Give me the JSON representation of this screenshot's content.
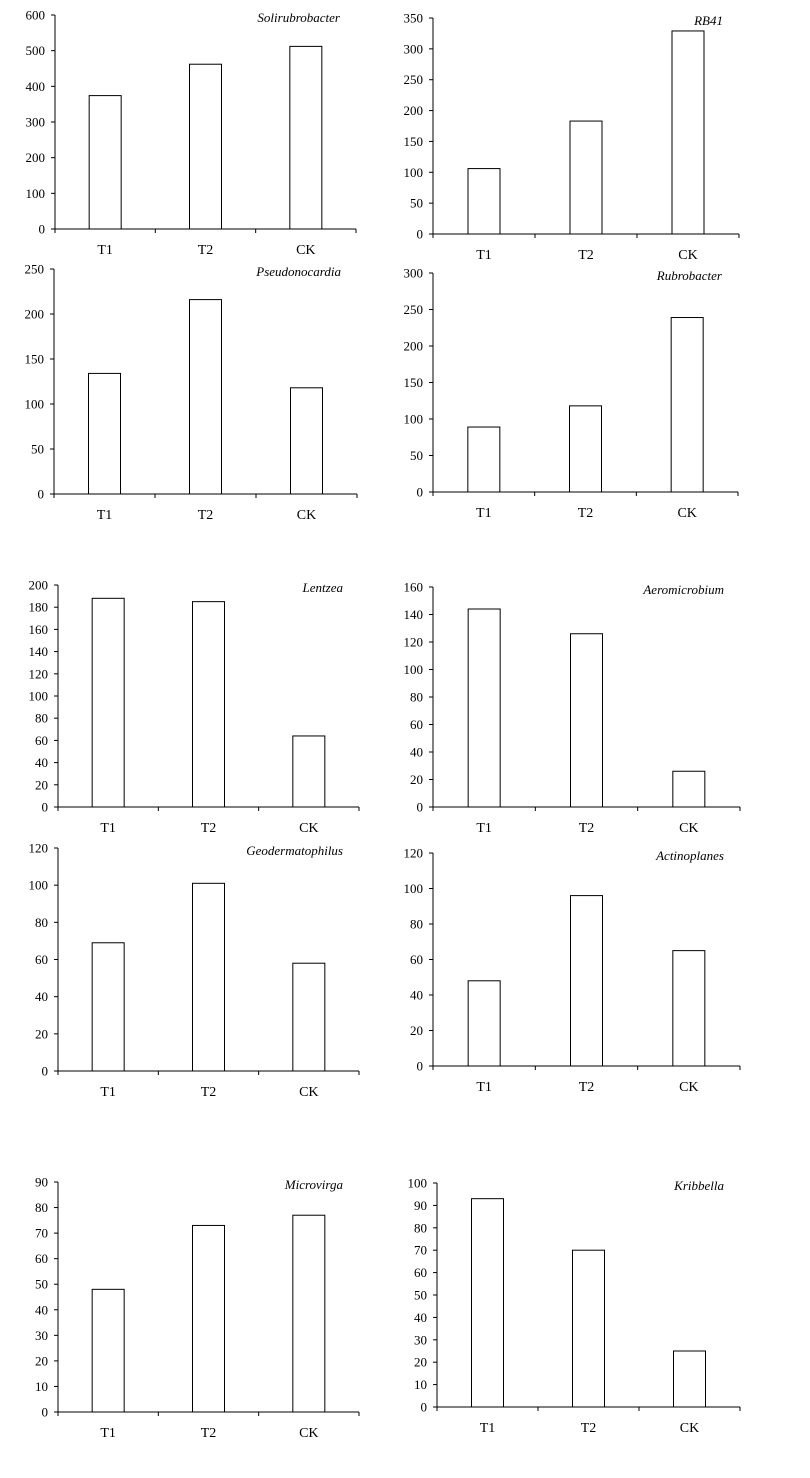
{
  "colors": {
    "bar_fill": "#ffffff",
    "bar_stroke": "#000000",
    "axis": "#000000",
    "text": "#000000"
  },
  "chart_data": [
    {
      "type": "bar",
      "title": "Solirubrobacter",
      "categories": [
        "T1",
        "T2",
        "CK"
      ],
      "values": [
        374,
        462,
        512
      ],
      "ylim": [
        0,
        600
      ],
      "yticks": [
        0,
        100,
        200,
        300,
        400,
        500,
        600
      ],
      "grid": false,
      "xlabel": "",
      "ylabel": ""
    },
    {
      "type": "bar",
      "title": "RB41",
      "categories": [
        "T1",
        "T2",
        "CK"
      ],
      "values": [
        106,
        183,
        329
      ],
      "ylim": [
        0,
        350
      ],
      "yticks": [
        0,
        50,
        100,
        150,
        200,
        250,
        300,
        350
      ],
      "grid": false,
      "xlabel": "",
      "ylabel": ""
    },
    {
      "type": "bar",
      "title": "Pseudonocardia",
      "categories": [
        "T1",
        "T2",
        "CK"
      ],
      "values": [
        134,
        216,
        118
      ],
      "ylim": [
        0,
        250
      ],
      "yticks": [
        0,
        50,
        100,
        150,
        200,
        250
      ],
      "grid": false,
      "xlabel": "",
      "ylabel": ""
    },
    {
      "type": "bar",
      "title": "Rubrobacter",
      "categories": [
        "T1",
        "T2",
        "CK"
      ],
      "values": [
        89,
        118,
        239
      ],
      "ylim": [
        0,
        300
      ],
      "yticks": [
        0,
        50,
        100,
        150,
        200,
        250,
        300
      ],
      "grid": false,
      "xlabel": "",
      "ylabel": ""
    },
    {
      "type": "bar",
      "title": "Lentzea",
      "categories": [
        "T1",
        "T2",
        "CK"
      ],
      "values": [
        188,
        185,
        64
      ],
      "ylim": [
        0,
        200
      ],
      "yticks": [
        0,
        20,
        40,
        60,
        80,
        100,
        120,
        140,
        160,
        180,
        200
      ],
      "grid": false,
      "xlabel": "",
      "ylabel": ""
    },
    {
      "type": "bar",
      "title": "Aeromicrobium",
      "categories": [
        "T1",
        "T2",
        "CK"
      ],
      "values": [
        144,
        126,
        26
      ],
      "ylim": [
        0,
        160
      ],
      "yticks": [
        0,
        20,
        40,
        60,
        80,
        100,
        120,
        140,
        160
      ],
      "grid": false,
      "xlabel": "",
      "ylabel": ""
    },
    {
      "type": "bar",
      "title": "Geodermatophilus",
      "categories": [
        "T1",
        "T2",
        "CK"
      ],
      "values": [
        69,
        101,
        58
      ],
      "ylim": [
        0,
        120
      ],
      "yticks": [
        0,
        20,
        40,
        60,
        80,
        100,
        120
      ],
      "grid": false,
      "xlabel": "",
      "ylabel": ""
    },
    {
      "type": "bar",
      "title": "Actinoplanes",
      "categories": [
        "T1",
        "T2",
        "CK"
      ],
      "values": [
        48,
        96,
        65
      ],
      "ylim": [
        0,
        120
      ],
      "yticks": [
        0,
        20,
        40,
        60,
        80,
        100,
        120
      ],
      "grid": false,
      "xlabel": "",
      "ylabel": ""
    },
    {
      "type": "bar",
      "title": "Microvirga",
      "categories": [
        "T1",
        "T2",
        "CK"
      ],
      "values": [
        48,
        73,
        77
      ],
      "ylim": [
        0,
        90
      ],
      "yticks": [
        0,
        10,
        20,
        30,
        40,
        50,
        60,
        70,
        80,
        90
      ],
      "grid": false,
      "xlabel": "",
      "ylabel": ""
    },
    {
      "type": "bar",
      "title": "Kribbella",
      "categories": [
        "T1",
        "T2",
        "CK"
      ],
      "values": [
        93,
        70,
        25
      ],
      "ylim": [
        0,
        100
      ],
      "yticks": [
        0,
        10,
        20,
        30,
        40,
        50,
        60,
        70,
        80,
        90,
        100
      ],
      "grid": false,
      "xlabel": "",
      "ylabel": ""
    }
  ]
}
